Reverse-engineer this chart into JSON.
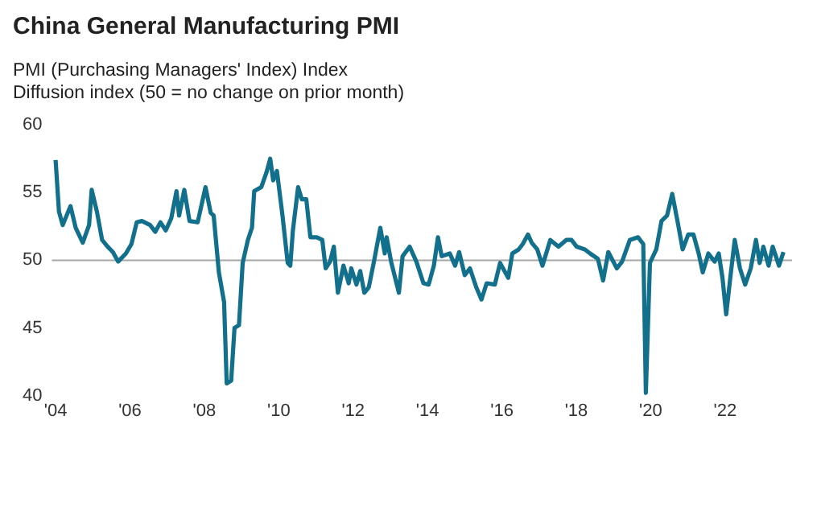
{
  "chart_data": {
    "type": "line",
    "title": "China General Manufacturing PMI",
    "subtitle": "PMI (Purchasing Managers' Index) Index\nDiffusion index (50 = no change on prior month)",
    "x": [
      2004.0,
      2004.09,
      2004.19,
      2004.4,
      2004.54,
      2004.73,
      2004.9,
      2004.97,
      2005.11,
      2005.25,
      2005.4,
      2005.54,
      2005.68,
      2005.89,
      2006.04,
      2006.18,
      2006.32,
      2006.54,
      2006.68,
      2006.82,
      2006.96,
      2007.11,
      2007.25,
      2007.32,
      2007.46,
      2007.6,
      2007.82,
      2008.03,
      2008.17,
      2008.25,
      2008.39,
      2008.53,
      2008.6,
      2008.72,
      2008.81,
      2008.93,
      2009.03,
      2009.17,
      2009.28,
      2009.34,
      2009.53,
      2009.67,
      2009.77,
      2009.85,
      2009.95,
      2010.1,
      2010.24,
      2010.31,
      2010.38,
      2010.52,
      2010.62,
      2010.74,
      2010.85,
      2011.02,
      2011.17,
      2011.26,
      2011.38,
      2011.48,
      2011.59,
      2011.74,
      2011.88,
      2011.95,
      2012.09,
      2012.19,
      2012.3,
      2012.42,
      2012.56,
      2012.73,
      2012.85,
      2012.9,
      2013.02,
      2013.23,
      2013.33,
      2013.52,
      2013.7,
      2013.89,
      2014.03,
      2014.17,
      2014.28,
      2014.38,
      2014.6,
      2014.74,
      2014.85,
      2015.0,
      2015.14,
      2015.31,
      2015.45,
      2015.59,
      2015.81,
      2015.95,
      2016.17,
      2016.28,
      2016.45,
      2016.56,
      2016.7,
      2016.8,
      2016.95,
      2017.09,
      2017.3,
      2017.52,
      2017.73,
      2017.87,
      2018.01,
      2018.23,
      2018.37,
      2018.58,
      2018.72,
      2018.86,
      2019.09,
      2019.23,
      2019.44,
      2019.66,
      2019.8,
      2019.87,
      2019.98,
      2020.15,
      2020.29,
      2020.44,
      2020.58,
      2020.72,
      2020.86,
      2021.01,
      2021.15,
      2021.29,
      2021.4,
      2021.55,
      2021.72,
      2021.83,
      2021.93,
      2022.03,
      2022.14,
      2022.26,
      2022.4,
      2022.54,
      2022.69,
      2022.83,
      2022.93,
      2023.03,
      2023.17,
      2023.28,
      2023.45,
      2023.57
    ],
    "values": [
      57.4,
      53.6,
      52.6,
      54.0,
      52.4,
      51.3,
      52.6,
      55.2,
      53.6,
      51.5,
      51.0,
      50.6,
      49.9,
      50.5,
      51.2,
      52.8,
      52.9,
      52.6,
      52.1,
      52.8,
      52.2,
      53.1,
      55.1,
      53.3,
      55.2,
      52.9,
      52.8,
      55.4,
      53.5,
      53.3,
      49.1,
      46.9,
      40.9,
      41.1,
      45.0,
      45.2,
      49.8,
      51.5,
      52.4,
      55.1,
      55.4,
      56.5,
      57.5,
      55.9,
      56.6,
      53.3,
      49.8,
      49.6,
      52.2,
      55.4,
      54.5,
      54.5,
      51.7,
      51.7,
      51.5,
      49.4,
      49.9,
      51.0,
      47.6,
      49.6,
      48.3,
      49.4,
      48.2,
      49.2,
      47.6,
      48.0,
      49.9,
      52.4,
      50.5,
      51.7,
      49.9,
      47.6,
      50.3,
      51.0,
      49.9,
      48.3,
      48.2,
      49.6,
      51.7,
      50.3,
      50.5,
      49.6,
      50.6,
      48.9,
      49.4,
      48.0,
      47.1,
      48.3,
      48.2,
      49.8,
      48.7,
      50.5,
      50.8,
      51.2,
      51.9,
      51.3,
      50.8,
      49.6,
      51.5,
      51.0,
      51.5,
      51.5,
      51.0,
      50.8,
      50.5,
      50.1,
      48.5,
      50.6,
      49.4,
      49.9,
      51.5,
      51.7,
      51.2,
      40.2,
      49.8,
      50.8,
      52.9,
      53.3,
      54.9,
      52.9,
      50.8,
      51.9,
      51.9,
      50.5,
      49.1,
      50.5,
      49.9,
      50.5,
      48.7,
      46.0,
      48.7,
      51.5,
      49.4,
      48.2,
      49.4,
      51.5,
      49.8,
      51.0,
      49.6,
      51.0,
      49.6,
      50.6
    ],
    "color": "#12708c",
    "xlim": [
      2003.9,
      2023.8
    ],
    "xticks": [
      {
        "value": 2004,
        "label": "'04"
      },
      {
        "value": 2006,
        "label": "'06"
      },
      {
        "value": 2008,
        "label": "'08"
      },
      {
        "value": 2010,
        "label": "'10"
      },
      {
        "value": 2012,
        "label": "'12"
      },
      {
        "value": 2014,
        "label": "'14"
      },
      {
        "value": 2016,
        "label": "'16"
      },
      {
        "value": 2018,
        "label": "'18"
      },
      {
        "value": 2020,
        "label": "'20"
      },
      {
        "value": 2022,
        "label": "'22"
      }
    ],
    "ylim": [
      40,
      60
    ],
    "yticks": [
      40,
      45,
      50,
      55,
      60
    ],
    "ref_lines": [
      {
        "axis": "y",
        "value": 50,
        "color": "#a6a6a6"
      }
    ],
    "grid": false,
    "legend": false
  }
}
